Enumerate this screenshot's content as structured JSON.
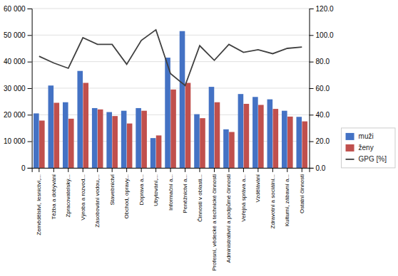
{
  "chart_data": {
    "type": "bar",
    "categories": [
      "Zemědělství, lesnictví,...",
      "Těžba a dobývání",
      "Zpracovatelský...",
      "Výroba a rozvod...",
      "Zásobování vodou,...",
      "Stavebnictví",
      "Obchod, opravy...",
      "Doprava a...",
      "Ubytování,...",
      "Informační a...",
      "Peněžnictví a...",
      "Činnosti v oblasti...",
      "Profesní, vědecké a technické činnosti",
      "Administrativní a podpůrné činnosti",
      "Veřejná správa a...",
      "Vzdělávání",
      "Zdravotní a sociální...",
      "Kulturní, zábavní a...",
      "Ostatní činnosti"
    ],
    "series": [
      {
        "name": "muži",
        "color": "#4472C4",
        "values": [
          20500,
          31000,
          24700,
          36500,
          22500,
          21000,
          21500,
          22500,
          11200,
          41500,
          51500,
          20200,
          30500,
          14500,
          27800,
          26700,
          25800,
          21500,
          19200
        ]
      },
      {
        "name": "ženy",
        "color": "#C0504D",
        "values": [
          17800,
          24500,
          18500,
          32000,
          22000,
          19500,
          16700,
          21500,
          12200,
          29500,
          32000,
          18700,
          24700,
          13500,
          24100,
          23700,
          22200,
          19300,
          17500
        ]
      },
      {
        "name": "GPG [%]",
        "type": "line",
        "axis": "y2",
        "color": "#404040",
        "values": [
          84,
          79,
          75,
          98,
          93,
          93,
          78,
          96,
          104,
          71,
          62,
          92,
          81,
          93,
          87,
          89,
          86,
          90,
          91
        ]
      }
    ],
    "ylim": [
      0,
      60000
    ],
    "yticks": [
      0,
      {
        "value": 10000,
        "label": "10 000"
      },
      {
        "value": 20000,
        "label": "20 000"
      },
      {
        "value": 30000,
        "label": "30 000"
      },
      {
        "value": 40000,
        "label": "40 000"
      },
      {
        "value": 50000,
        "label": "50 000"
      },
      {
        "value": 60000,
        "label": "60 000"
      }
    ],
    "y2lim": [
      0,
      120
    ],
    "y2ticks": [
      {
        "value": 0,
        "label": "0.0"
      },
      {
        "value": 20,
        "label": "20.0"
      },
      {
        "value": 40,
        "label": "40.0"
      },
      {
        "value": 60,
        "label": "60.0"
      },
      {
        "value": 80,
        "label": "80.0"
      },
      {
        "value": 100,
        "label": "100.0"
      },
      {
        "value": 120,
        "label": "120.0"
      }
    ],
    "grid": true,
    "legend": "lower right"
  }
}
